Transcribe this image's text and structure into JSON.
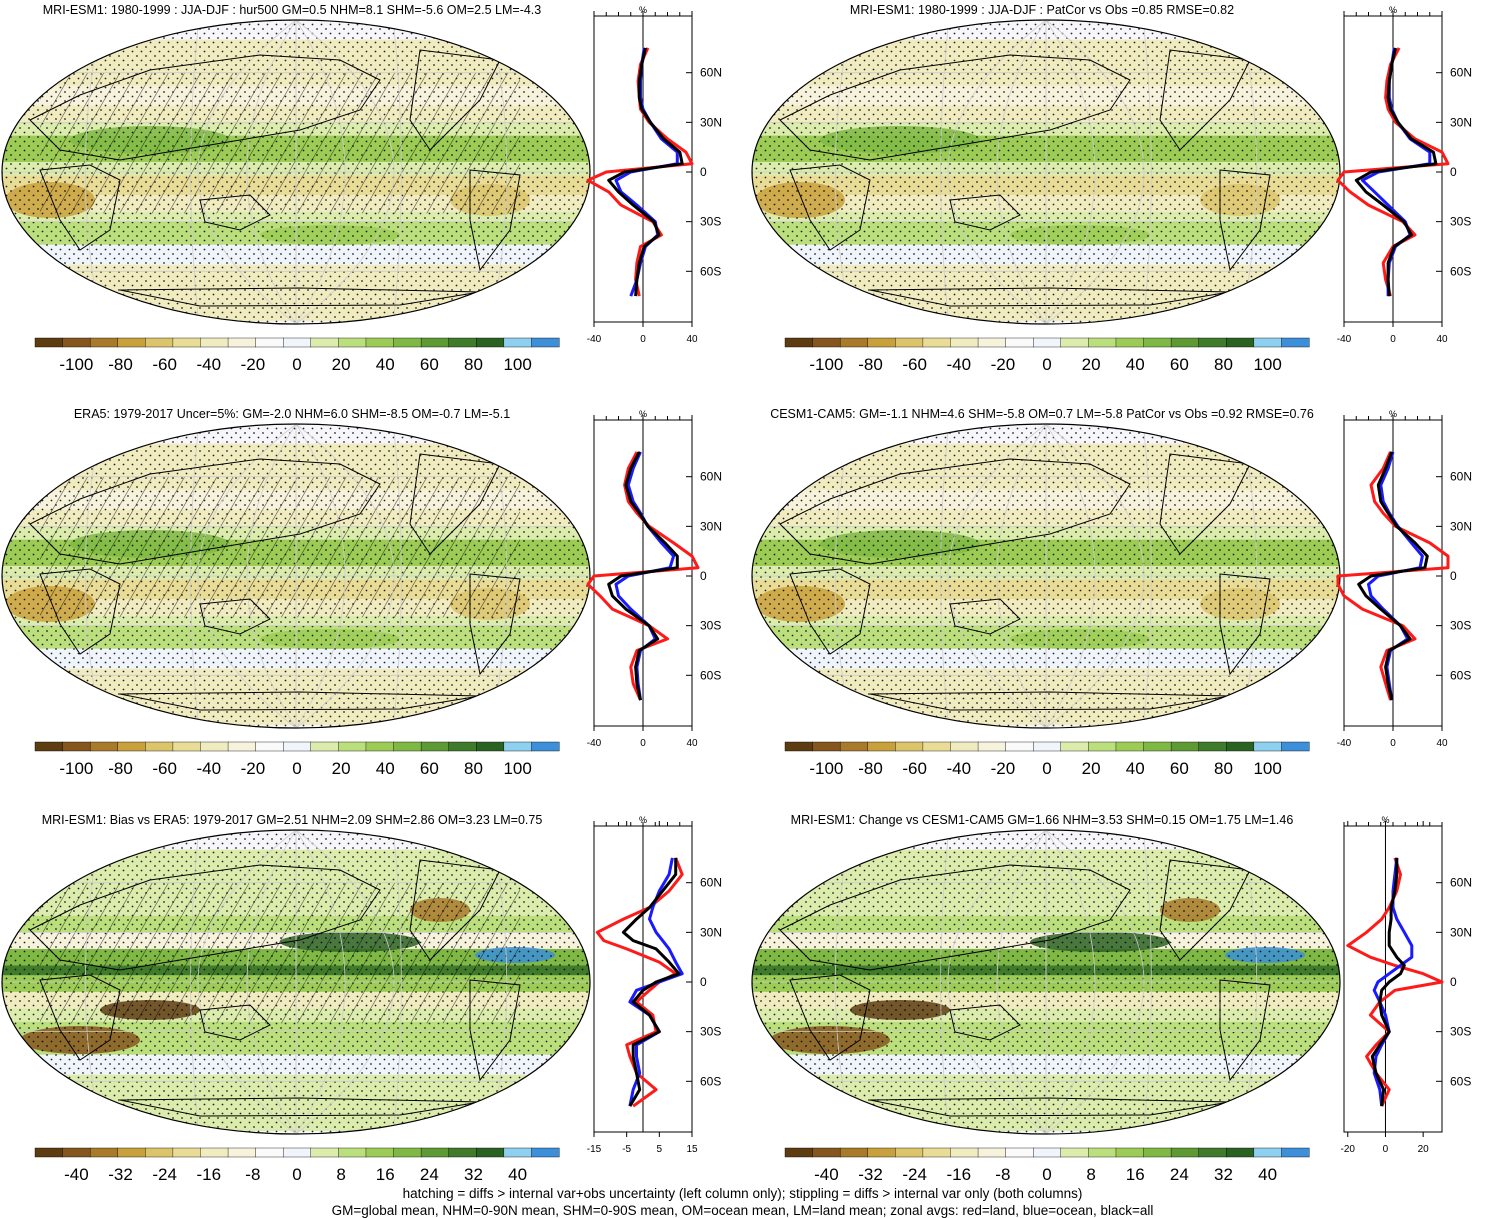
{
  "chart_data": [
    {
      "type": "heatmap",
      "title": "MRI-ESM1: 1980-1999 : JJA-DJF : hur500 GM=0.5 NHM=8.1 SHM=-5.6 OM=2.5 LM=-4.3",
      "colorbar_ticks": [
        "-100",
        "-80",
        "-60",
        "-40",
        "-20",
        "0",
        "20",
        "40",
        "60",
        "80",
        "100"
      ],
      "zonal_xticks": [
        "-40",
        "0",
        "40"
      ],
      "zonal_xlim": [
        -40,
        40
      ],
      "zonal_unit": "%",
      "lat_ticks": [
        "60N",
        "30N",
        "0",
        "30S",
        "60S"
      ],
      "series": [
        {
          "name": "red",
          "lat": [
            75,
            65,
            55,
            45,
            38,
            30,
            20,
            12,
            5,
            0,
            -5,
            -12,
            -20,
            -30,
            -38,
            -45,
            -55,
            -65,
            -75
          ],
          "values": [
            4,
            -2,
            -4,
            -3,
            -2,
            5,
            20,
            35,
            40,
            -30,
            -45,
            -28,
            -18,
            8,
            15,
            -2,
            -5,
            -6,
            -3
          ]
        },
        {
          "name": "blue",
          "lat": [
            75,
            65,
            55,
            45,
            38,
            30,
            20,
            12,
            5,
            0,
            -5,
            -12,
            -20,
            -30,
            -38,
            -45,
            -55,
            -65,
            -75
          ],
          "values": [
            1,
            -1,
            -2,
            -2,
            0,
            6,
            15,
            28,
            28,
            -10,
            -22,
            -18,
            -5,
            10,
            12,
            2,
            -2,
            -5,
            -10
          ]
        },
        {
          "name": "black",
          "lat": [
            75,
            65,
            55,
            45,
            38,
            30,
            20,
            12,
            5,
            0,
            -5,
            -12,
            -20,
            -30,
            -38,
            -45,
            -55,
            -65,
            -75
          ],
          "values": [
            2,
            -1,
            -3,
            -3,
            -1,
            6,
            17,
            30,
            32,
            -15,
            -28,
            -20,
            -8,
            9,
            13,
            1,
            -3,
            -5,
            -6
          ]
        }
      ]
    },
    {
      "type": "heatmap",
      "title": "MRI-ESM1: 1980-1999 : JJA-DJF : PatCor vs Obs =0.85 RMSE=0.82",
      "colorbar_ticks": [
        "-100",
        "-80",
        "-60",
        "-40",
        "-20",
        "0",
        "20",
        "40",
        "60",
        "80",
        "100"
      ],
      "zonal_xticks": [
        "-40",
        "0",
        "40"
      ],
      "zonal_xlim": [
        -40,
        40
      ],
      "zonal_unit": "%",
      "lat_ticks": [
        "60N",
        "30N",
        "0",
        "30S",
        "60S"
      ],
      "series": [
        {
          "name": "red",
          "lat": [
            75,
            65,
            55,
            45,
            38,
            30,
            20,
            12,
            5,
            0,
            -5,
            -12,
            -20,
            -30,
            -38,
            -45,
            -55,
            -65,
            -75
          ],
          "values": [
            5,
            -2,
            -5,
            -6,
            -4,
            2,
            18,
            40,
            45,
            -40,
            -55,
            -35,
            -20,
            8,
            18,
            0,
            -8,
            -6,
            -2
          ]
        },
        {
          "name": "blue",
          "lat": [
            75,
            65,
            55,
            45,
            38,
            30,
            20,
            12,
            5,
            0,
            -5,
            -12,
            -20,
            -30,
            -38,
            -45,
            -55,
            -65,
            -75
          ],
          "values": [
            1,
            -1,
            -3,
            -3,
            -1,
            4,
            14,
            30,
            30,
            -12,
            -25,
            -15,
            -4,
            10,
            14,
            2,
            -3,
            -4,
            -4
          ]
        },
        {
          "name": "black",
          "lat": [
            75,
            65,
            55,
            45,
            38,
            30,
            20,
            12,
            5,
            0,
            -5,
            -12,
            -20,
            -30,
            -38,
            -45,
            -55,
            -65,
            -75
          ],
          "values": [
            2,
            -1,
            -3,
            -4,
            -2,
            4,
            15,
            33,
            35,
            -18,
            -30,
            -22,
            -8,
            9,
            15,
            1,
            -4,
            -4,
            -3
          ]
        }
      ]
    },
    {
      "type": "heatmap",
      "title": "ERA5: 1979-2017 Uncer=5%: GM=-2.0 NHM=6.0 SHM=-8.5 OM=-0.7 LM=-5.1",
      "colorbar_ticks": [
        "-100",
        "-80",
        "-60",
        "-40",
        "-20",
        "0",
        "20",
        "40",
        "60",
        "80",
        "100"
      ],
      "zonal_xticks": [
        "-40",
        "0",
        "40"
      ],
      "zonal_xlim": [
        -40,
        40
      ],
      "zonal_unit": "%",
      "lat_ticks": [
        "60N",
        "30N",
        "0",
        "30S",
        "60S"
      ],
      "series": [
        {
          "name": "red",
          "lat": [
            75,
            65,
            55,
            45,
            38,
            30,
            20,
            12,
            5,
            0,
            -5,
            -12,
            -20,
            -30,
            -38,
            -45,
            -55,
            -65,
            -75
          ],
          "values": [
            -5,
            -12,
            -15,
            -12,
            -5,
            5,
            25,
            40,
            45,
            -40,
            -50,
            -35,
            -25,
            5,
            20,
            -5,
            -10,
            -8,
            -2
          ]
        },
        {
          "name": "blue",
          "lat": [
            75,
            65,
            55,
            45,
            38,
            30,
            20,
            12,
            5,
            0,
            -5,
            -12,
            -20,
            -30,
            -38,
            -45,
            -55,
            -65,
            -75
          ],
          "values": [
            -2,
            -8,
            -12,
            -8,
            -2,
            4,
            15,
            25,
            22,
            -12,
            -22,
            -20,
            -10,
            5,
            10,
            -2,
            -5,
            -4,
            -2
          ]
        },
        {
          "name": "black",
          "lat": [
            75,
            65,
            55,
            45,
            38,
            30,
            20,
            12,
            5,
            0,
            -5,
            -12,
            -20,
            -30,
            -38,
            -45,
            -55,
            -65,
            -75
          ],
          "values": [
            -3,
            -10,
            -14,
            -10,
            -3,
            4,
            18,
            28,
            28,
            -18,
            -28,
            -25,
            -14,
            5,
            12,
            -3,
            -6,
            -5,
            -2
          ]
        }
      ]
    },
    {
      "type": "heatmap",
      "title": "CESM1-CAM5: GM=-1.1 NHM=4.6 SHM=-5.8 OM=0.7 LM=-5.8 PatCor vs Obs =0.92 RMSE=0.76",
      "colorbar_ticks": [
        "-100",
        "-80",
        "-60",
        "-40",
        "-20",
        "0",
        "20",
        "40",
        "60",
        "80",
        "100"
      ],
      "zonal_xticks": [
        "-40",
        "0",
        "40"
      ],
      "zonal_xlim": [
        -40,
        40
      ],
      "zonal_unit": "%",
      "lat_ticks": [
        "60N",
        "30N",
        "0",
        "30S",
        "60S"
      ],
      "series": [
        {
          "name": "red",
          "lat": [
            75,
            65,
            55,
            45,
            38,
            30,
            20,
            12,
            5,
            0,
            -5,
            -12,
            -20,
            -30,
            -38,
            -45,
            -55,
            -65,
            -75
          ],
          "values": [
            -2,
            -8,
            -18,
            -15,
            -8,
            2,
            30,
            48,
            50,
            -45,
            -55,
            -40,
            -25,
            8,
            18,
            -5,
            -10,
            -6,
            -2
          ]
        },
        {
          "name": "blue",
          "lat": [
            75,
            65,
            55,
            45,
            38,
            30,
            20,
            12,
            5,
            0,
            -5,
            -12,
            -20,
            -30,
            -38,
            -45,
            -55,
            -65,
            -75
          ],
          "values": [
            0,
            -4,
            -10,
            -8,
            -3,
            4,
            15,
            24,
            22,
            -12,
            -20,
            -18,
            -8,
            6,
            12,
            -2,
            -5,
            -3,
            -1
          ]
        },
        {
          "name": "black",
          "lat": [
            75,
            65,
            55,
            45,
            38,
            30,
            20,
            12,
            5,
            0,
            -5,
            -12,
            -20,
            -30,
            -38,
            -45,
            -55,
            -65,
            -75
          ],
          "values": [
            -1,
            -6,
            -12,
            -10,
            -4,
            3,
            18,
            28,
            26,
            -18,
            -28,
            -22,
            -10,
            6,
            14,
            -3,
            -6,
            -4,
            -1
          ]
        }
      ]
    },
    {
      "type": "heatmap",
      "title": "MRI-ESM1: Bias vs ERA5: 1979-2017 GM=2.51 NHM=2.09 SHM=2.86 OM=3.23 LM=0.75",
      "colorbar_ticks": [
        "-40",
        "-32",
        "-24",
        "-16",
        "-8",
        "0",
        "8",
        "16",
        "24",
        "32",
        "40"
      ],
      "zonal_xticks": [
        "-15",
        "-5",
        "5",
        "15"
      ],
      "zonal_xlim": [
        -15,
        15
      ],
      "zonal_unit": "%",
      "lat_ticks": [
        "60N",
        "30N",
        "0",
        "30S",
        "60S"
      ],
      "series": [
        {
          "name": "red",
          "lat": [
            75,
            65,
            55,
            45,
            38,
            30,
            25,
            20,
            12,
            5,
            0,
            -5,
            -12,
            -20,
            -30,
            -38,
            -45,
            -55,
            -65,
            -75
          ],
          "values": [
            10,
            12,
            8,
            2,
            -6,
            -14,
            -12,
            -5,
            5,
            10,
            5,
            2,
            -2,
            3,
            4,
            -5,
            -4,
            -2,
            4,
            -3
          ]
        },
        {
          "name": "blue",
          "lat": [
            75,
            65,
            55,
            45,
            38,
            30,
            25,
            20,
            12,
            5,
            0,
            -5,
            -12,
            -20,
            -30,
            -38,
            -45,
            -55,
            -65,
            -75
          ],
          "values": [
            9,
            8,
            5,
            3,
            2,
            4,
            6,
            8,
            10,
            12,
            5,
            -2,
            -4,
            2,
            5,
            -2,
            -2,
            -1,
            -3,
            -4
          ]
        },
        {
          "name": "black",
          "lat": [
            75,
            65,
            55,
            45,
            38,
            30,
            25,
            20,
            12,
            5,
            0,
            -5,
            -12,
            -20,
            -30,
            -38,
            -45,
            -55,
            -65,
            -75
          ],
          "values": [
            10,
            10,
            6,
            2,
            -2,
            -6,
            -3,
            4,
            8,
            11,
            4,
            0,
            -3,
            2,
            5,
            -3,
            -3,
            -2,
            -1,
            -4
          ]
        }
      ]
    },
    {
      "type": "heatmap",
      "title": "MRI-ESM1: Change vs CESM1-CAM5 GM=1.66 NHM=3.53 SHM=0.15 OM=1.75 LM=1.46",
      "colorbar_ticks": [
        "-40",
        "-32",
        "-24",
        "-16",
        "-8",
        "0",
        "8",
        "16",
        "24",
        "32",
        "40"
      ],
      "zonal_xticks": [
        "-20",
        "0",
        "20"
      ],
      "zonal_xlim": [
        -22,
        30
      ],
      "zonal_unit": "%",
      "lat_ticks": [
        "60N",
        "30N",
        "0",
        "30S",
        "60S"
      ],
      "series": [
        {
          "name": "red",
          "lat": [
            75,
            65,
            55,
            45,
            38,
            30,
            22,
            15,
            10,
            5,
            0,
            -5,
            -12,
            -20,
            -30,
            -38,
            -45,
            -55,
            -65,
            -75
          ],
          "values": [
            5,
            8,
            6,
            2,
            -2,
            -10,
            -20,
            -8,
            5,
            20,
            30,
            5,
            -3,
            -8,
            2,
            -5,
            -10,
            -5,
            2,
            -2
          ]
        },
        {
          "name": "blue",
          "lat": [
            75,
            65,
            55,
            45,
            38,
            30,
            22,
            15,
            10,
            5,
            0,
            -5,
            -12,
            -20,
            -30,
            -38,
            -45,
            -55,
            -65,
            -75
          ],
          "values": [
            6,
            5,
            4,
            4,
            6,
            10,
            14,
            14,
            8,
            2,
            -4,
            -6,
            -3,
            0,
            2,
            -2,
            -5,
            -6,
            -3,
            -2
          ]
        },
        {
          "name": "black",
          "lat": [
            75,
            65,
            55,
            45,
            38,
            30,
            22,
            15,
            10,
            5,
            0,
            -5,
            -12,
            -20,
            -30,
            -38,
            -45,
            -55,
            -65,
            -75
          ],
          "values": [
            6,
            6,
            5,
            3,
            3,
            2,
            2,
            6,
            10,
            8,
            2,
            -2,
            -3,
            -2,
            2,
            -3,
            -7,
            -5,
            -1,
            -2
          ]
        }
      ]
    }
  ],
  "colorbar_colors": [
    "#5e3c12",
    "#86561f",
    "#a87a2a",
    "#c9a13c",
    "#dcc46b",
    "#e9dc97",
    "#f1ebc0",
    "#f7f2dc",
    "#fafafa",
    "#f0f4fb",
    "#dbecac",
    "#bcdf7d",
    "#9ccc55",
    "#7fb844",
    "#5e9a34",
    "#3f7b2a",
    "#2a6222",
    "#8ed0f0",
    "#3c8fd8"
  ],
  "footer": {
    "line1": "hatching = diffs > internal var+obs uncertainty (left column only); stippling = diffs > internal var only (both columns)",
    "line2": "GM=global mean, NHM=0-90N mean, SHM=0-90S mean, OM=ocean mean, LM=land mean; zonal avgs: red=land, blue=ocean, black=all"
  }
}
